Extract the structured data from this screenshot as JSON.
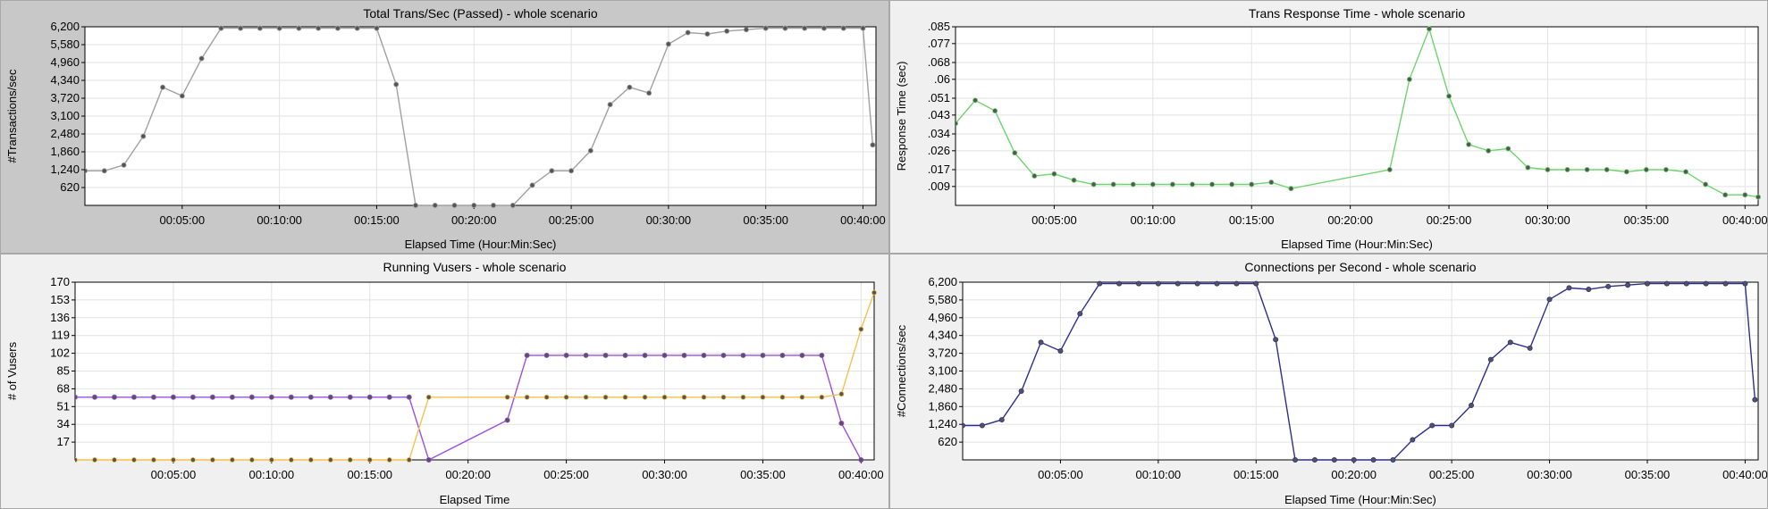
{
  "chart_data": [
    {
      "type": "line",
      "title": "Total Trans/Sec (Passed) - whole scenario",
      "xlabel": "Elapsed Time (Hour:Min:Sec)",
      "ylabel": "#Transactions/sec",
      "xlim": [
        0,
        2440
      ],
      "ylim": [
        0,
        6200
      ],
      "yticks": [
        "620",
        "1,240",
        "1,860",
        "2,480",
        "3,100",
        "3,720",
        "4,340",
        "4,960",
        "5,580",
        "6,200"
      ],
      "xticks": [
        "00:05:00",
        "00:10:00",
        "00:15:00",
        "00:20:00",
        "00:25:00",
        "00:30:00",
        "00:35:00",
        "00:40:00"
      ],
      "grid": true,
      "series": [
        {
          "color": "#a0a0a0",
          "x": [
            0,
            60,
            120,
            180,
            240,
            300,
            360,
            420,
            480,
            540,
            600,
            660,
            720,
            780,
            840,
            900,
            960,
            1020,
            1080,
            1140,
            1200,
            1260,
            1320,
            1380,
            1440,
            1500,
            1560,
            1620,
            1680,
            1740,
            1800,
            1860,
            1920,
            1980,
            2040,
            2100,
            2160,
            2220,
            2280,
            2340,
            2400,
            2430
          ],
          "y": [
            1200,
            1200,
            1400,
            2400,
            4100,
            3800,
            5100,
            6150,
            6150,
            6150,
            6150,
            6150,
            6150,
            6150,
            6150,
            6150,
            4200,
            0,
            0,
            0,
            0,
            0,
            0,
            700,
            1200,
            1200,
            1900,
            3500,
            4100,
            3900,
            5600,
            6000,
            5950,
            6050,
            6100,
            6150,
            6150,
            6150,
            6150,
            6150,
            6150,
            2100
          ]
        }
      ]
    },
    {
      "type": "line",
      "title": "Trans Response Time - whole scenario",
      "xlabel": "Elapsed Time (Hour:Min:Sec)",
      "ylabel": "Response Time (sec)",
      "xlim": [
        0,
        2440
      ],
      "ylim": [
        0,
        0.085
      ],
      "yticks": [
        ".009",
        ".017",
        ".026",
        ".034",
        ".043",
        ".051",
        ".06",
        ".068",
        ".077",
        ".085"
      ],
      "xticks": [
        "00:05:00",
        "00:10:00",
        "00:15:00",
        "00:20:00",
        "00:25:00",
        "00:30:00",
        "00:35:00",
        "00:40:00"
      ],
      "grid": true,
      "series": [
        {
          "color": "#6fd46f",
          "x": [
            0,
            60,
            120,
            180,
            240,
            300,
            360,
            420,
            480,
            540,
            600,
            660,
            720,
            780,
            840,
            900,
            960,
            1020,
            1320,
            1380,
            1440,
            1500,
            1560,
            1620,
            1680,
            1740,
            1800,
            1860,
            1920,
            1980,
            2040,
            2100,
            2160,
            2220,
            2280,
            2340,
            2400,
            2440
          ],
          "y": [
            0.039,
            0.05,
            0.045,
            0.025,
            0.014,
            0.015,
            0.012,
            0.01,
            0.01,
            0.01,
            0.01,
            0.01,
            0.01,
            0.01,
            0.01,
            0.01,
            0.011,
            0.008,
            0.017,
            0.06,
            0.084,
            0.052,
            0.029,
            0.026,
            0.027,
            0.018,
            0.017,
            0.017,
            0.017,
            0.017,
            0.016,
            0.017,
            0.017,
            0.016,
            0.01,
            0.005,
            0.005,
            0.004
          ]
        }
      ]
    },
    {
      "type": "line",
      "title": "Running Vusers - whole scenario",
      "xlabel": "Elapsed Time",
      "ylabel": "# of Vusers",
      "xlim": [
        0,
        2440
      ],
      "ylim": [
        0,
        170
      ],
      "yticks": [
        "17",
        "34",
        "51",
        "68",
        "85",
        "102",
        "119",
        "136",
        "153",
        "170"
      ],
      "xticks": [
        "00:05:00",
        "00:10:00",
        "00:15:00",
        "00:20:00",
        "00:25:00",
        "00:30:00",
        "00:35:00",
        "00:40:00"
      ],
      "grid": true,
      "series": [
        {
          "color": "#9b4fe0",
          "x": [
            0,
            60,
            120,
            180,
            240,
            300,
            360,
            420,
            480,
            540,
            600,
            660,
            720,
            780,
            840,
            900,
            960,
            1020,
            1080,
            1320,
            1380,
            1440,
            1500,
            1560,
            1620,
            1680,
            1740,
            1800,
            1860,
            1920,
            1980,
            2040,
            2100,
            2160,
            2220,
            2280,
            2340,
            2400
          ],
          "y": [
            60,
            60,
            60,
            60,
            60,
            60,
            60,
            60,
            60,
            60,
            60,
            60,
            60,
            60,
            60,
            60,
            60,
            60,
            0,
            38,
            100,
            100,
            100,
            100,
            100,
            100,
            100,
            100,
            100,
            100,
            100,
            100,
            100,
            100,
            100,
            100,
            35,
            0
          ]
        },
        {
          "color": "#f5c04a",
          "x": [
            0,
            60,
            120,
            180,
            240,
            300,
            360,
            420,
            480,
            540,
            600,
            660,
            720,
            780,
            840,
            900,
            960,
            1020,
            1080,
            1320,
            1380,
            1440,
            1500,
            1560,
            1620,
            1680,
            1740,
            1800,
            1860,
            1920,
            1980,
            2040,
            2100,
            2160,
            2220,
            2280,
            2340,
            2400,
            2440
          ],
          "y": [
            0,
            0,
            0,
            0,
            0,
            0,
            0,
            0,
            0,
            0,
            0,
            0,
            0,
            0,
            0,
            0,
            0,
            0,
            60,
            60,
            60,
            60,
            60,
            60,
            60,
            60,
            60,
            60,
            60,
            60,
            60,
            60,
            60,
            60,
            60,
            60,
            63,
            125,
            160
          ]
        }
      ]
    },
    {
      "type": "line",
      "title": "Connections per Second - whole scenario",
      "xlabel": "Elapsed Time (Hour:Min:Sec)",
      "ylabel": "#Connections/sec",
      "xlim": [
        0,
        2440
      ],
      "ylim": [
        0,
        6200
      ],
      "yticks": [
        "620",
        "1,240",
        "1,860",
        "2,480",
        "3,100",
        "3,720",
        "4,340",
        "4,960",
        "5,580",
        "6,200"
      ],
      "xticks": [
        "00:05:00",
        "00:10:00",
        "00:15:00",
        "00:20:00",
        "00:25:00",
        "00:30:00",
        "00:35:00",
        "00:40:00"
      ],
      "grid": true,
      "series": [
        {
          "color": "#2d2f8c",
          "x": [
            0,
            60,
            120,
            180,
            240,
            300,
            360,
            420,
            480,
            540,
            600,
            660,
            720,
            780,
            840,
            900,
            960,
            1020,
            1080,
            1140,
            1200,
            1260,
            1320,
            1380,
            1440,
            1500,
            1560,
            1620,
            1680,
            1740,
            1800,
            1860,
            1920,
            1980,
            2040,
            2100,
            2160,
            2220,
            2280,
            2340,
            2400,
            2430
          ],
          "y": [
            1200,
            1200,
            1400,
            2400,
            4100,
            3800,
            5100,
            6150,
            6150,
            6150,
            6150,
            6150,
            6150,
            6150,
            6150,
            6150,
            4200,
            0,
            0,
            0,
            0,
            0,
            0,
            700,
            1200,
            1200,
            1900,
            3500,
            4100,
            3900,
            5600,
            6000,
            5950,
            6050,
            6100,
            6150,
            6150,
            6150,
            6150,
            6150,
            6150,
            2100
          ]
        }
      ]
    }
  ]
}
